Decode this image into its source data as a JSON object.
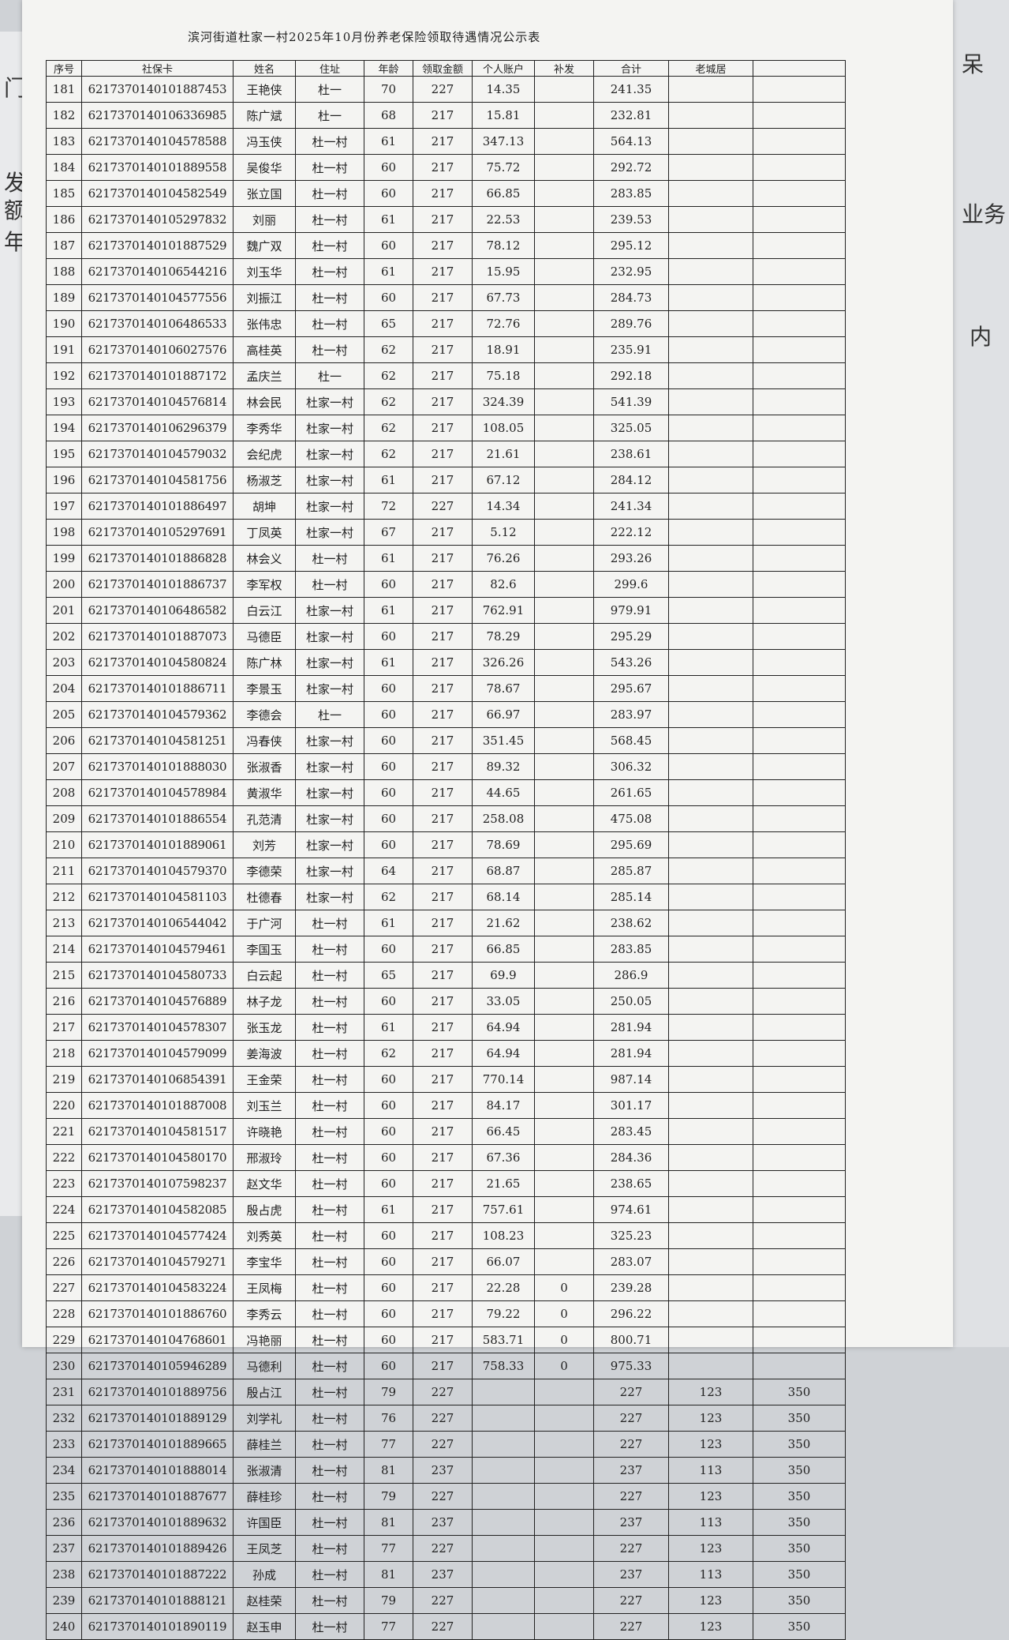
{
  "title": "滨河街道杜家一村2025年10月份养老保险领取待遇情况公示表",
  "side_fragments": {
    "left": [
      "门",
      "发",
      "额",
      "年"
    ],
    "right": [
      "呆",
      "业务",
      "内"
    ]
  },
  "columns": [
    "序号",
    "社保卡",
    "姓名",
    "住址",
    "年龄",
    "领取金额",
    "个人账户",
    "补发",
    "合计",
    "老城居",
    ""
  ],
  "rows": [
    [
      "181",
      "6217370140101887453",
      "王艳侠",
      "杜一",
      "70",
      "227",
      "14.35",
      "",
      "241.35",
      "",
      ""
    ],
    [
      "182",
      "6217370140106336985",
      "陈广斌",
      "杜一",
      "68",
      "217",
      "15.81",
      "",
      "232.81",
      "",
      ""
    ],
    [
      "183",
      "6217370140104578588",
      "冯玉侠",
      "杜一村",
      "61",
      "217",
      "347.13",
      "",
      "564.13",
      "",
      ""
    ],
    [
      "184",
      "6217370140101889558",
      "吴俊华",
      "杜一村",
      "60",
      "217",
      "75.72",
      "",
      "292.72",
      "",
      ""
    ],
    [
      "185",
      "6217370140104582549",
      "张立国",
      "杜一村",
      "60",
      "217",
      "66.85",
      "",
      "283.85",
      "",
      ""
    ],
    [
      "186",
      "6217370140105297832",
      "刘丽",
      "杜一村",
      "61",
      "217",
      "22.53",
      "",
      "239.53",
      "",
      ""
    ],
    [
      "187",
      "6217370140101887529",
      "魏广双",
      "杜一村",
      "60",
      "217",
      "78.12",
      "",
      "295.12",
      "",
      ""
    ],
    [
      "188",
      "6217370140106544216",
      "刘玉华",
      "杜一村",
      "61",
      "217",
      "15.95",
      "",
      "232.95",
      "",
      ""
    ],
    [
      "189",
      "6217370140104577556",
      "刘振江",
      "杜一村",
      "60",
      "217",
      "67.73",
      "",
      "284.73",
      "",
      ""
    ],
    [
      "190",
      "6217370140106486533",
      "张伟忠",
      "杜一村",
      "65",
      "217",
      "72.76",
      "",
      "289.76",
      "",
      ""
    ],
    [
      "191",
      "6217370140106027576",
      "高桂英",
      "杜一村",
      "62",
      "217",
      "18.91",
      "",
      "235.91",
      "",
      ""
    ],
    [
      "192",
      "6217370140101887172",
      "孟庆兰",
      "杜一",
      "62",
      "217",
      "75.18",
      "",
      "292.18",
      "",
      ""
    ],
    [
      "193",
      "6217370140104576814",
      "林会民",
      "杜家一村",
      "62",
      "217",
      "324.39",
      "",
      "541.39",
      "",
      ""
    ],
    [
      "194",
      "6217370140106296379",
      "李秀华",
      "杜家一村",
      "62",
      "217",
      "108.05",
      "",
      "325.05",
      "",
      ""
    ],
    [
      "195",
      "6217370140104579032",
      "会纪虎",
      "杜家一村",
      "62",
      "217",
      "21.61",
      "",
      "238.61",
      "",
      ""
    ],
    [
      "196",
      "6217370140104581756",
      "杨淑芝",
      "杜家一村",
      "61",
      "217",
      "67.12",
      "",
      "284.12",
      "",
      ""
    ],
    [
      "197",
      "6217370140101886497",
      "胡坤",
      "杜家一村",
      "72",
      "227",
      "14.34",
      "",
      "241.34",
      "",
      ""
    ],
    [
      "198",
      "6217370140105297691",
      "丁凤英",
      "杜家一村",
      "67",
      "217",
      "5.12",
      "",
      "222.12",
      "",
      ""
    ],
    [
      "199",
      "6217370140101886828",
      "林会义",
      "杜一村",
      "61",
      "217",
      "76.26",
      "",
      "293.26",
      "",
      ""
    ],
    [
      "200",
      "6217370140101886737",
      "李军权",
      "杜一村",
      "60",
      "217",
      "82.6",
      "",
      "299.6",
      "",
      ""
    ],
    [
      "201",
      "6217370140106486582",
      "白云江",
      "杜家一村",
      "61",
      "217",
      "762.91",
      "",
      "979.91",
      "",
      ""
    ],
    [
      "202",
      "6217370140101887073",
      "马德臣",
      "杜家一村",
      "60",
      "217",
      "78.29",
      "",
      "295.29",
      "",
      ""
    ],
    [
      "203",
      "6217370140104580824",
      "陈广林",
      "杜家一村",
      "61",
      "217",
      "326.26",
      "",
      "543.26",
      "",
      ""
    ],
    [
      "204",
      "6217370140101886711",
      "李景玉",
      "杜家一村",
      "60",
      "217",
      "78.67",
      "",
      "295.67",
      "",
      ""
    ],
    [
      "205",
      "6217370140104579362",
      "李德会",
      "杜一",
      "60",
      "217",
      "66.97",
      "",
      "283.97",
      "",
      ""
    ],
    [
      "206",
      "6217370140104581251",
      "冯春侠",
      "杜家一村",
      "60",
      "217",
      "351.45",
      "",
      "568.45",
      "",
      ""
    ],
    [
      "207",
      "6217370140101888030",
      "张淑香",
      "杜家一村",
      "60",
      "217",
      "89.32",
      "",
      "306.32",
      "",
      ""
    ],
    [
      "208",
      "6217370140104578984",
      "黄淑华",
      "杜家一村",
      "60",
      "217",
      "44.65",
      "",
      "261.65",
      "",
      ""
    ],
    [
      "209",
      "6217370140101886554",
      "孔范清",
      "杜家一村",
      "60",
      "217",
      "258.08",
      "",
      "475.08",
      "",
      ""
    ],
    [
      "210",
      "6217370140101889061",
      "刘芳",
      "杜家一村",
      "60",
      "217",
      "78.69",
      "",
      "295.69",
      "",
      ""
    ],
    [
      "211",
      "6217370140104579370",
      "李德荣",
      "杜家一村",
      "64",
      "217",
      "68.87",
      "",
      "285.87",
      "",
      ""
    ],
    [
      "212",
      "6217370140104581103",
      "杜德春",
      "杜家一村",
      "62",
      "217",
      "68.14",
      "",
      "285.14",
      "",
      ""
    ],
    [
      "213",
      "6217370140106544042",
      "于广河",
      "杜一村",
      "61",
      "217",
      "21.62",
      "",
      "238.62",
      "",
      ""
    ],
    [
      "214",
      "6217370140104579461",
      "李国玉",
      "杜一村",
      "60",
      "217",
      "66.85",
      "",
      "283.85",
      "",
      ""
    ],
    [
      "215",
      "6217370140104580733",
      "白云起",
      "杜一村",
      "65",
      "217",
      "69.9",
      "",
      "286.9",
      "",
      ""
    ],
    [
      "216",
      "6217370140104576889",
      "林子龙",
      "杜一村",
      "60",
      "217",
      "33.05",
      "",
      "250.05",
      "",
      ""
    ],
    [
      "217",
      "6217370140104578307",
      "张玉龙",
      "杜一村",
      "61",
      "217",
      "64.94",
      "",
      "281.94",
      "",
      ""
    ],
    [
      "218",
      "6217370140104579099",
      "姜海波",
      "杜一村",
      "62",
      "217",
      "64.94",
      "",
      "281.94",
      "",
      ""
    ],
    [
      "219",
      "6217370140106854391",
      "王金荣",
      "杜一村",
      "60",
      "217",
      "770.14",
      "",
      "987.14",
      "",
      ""
    ],
    [
      "220",
      "6217370140101887008",
      "刘玉兰",
      "杜一村",
      "60",
      "217",
      "84.17",
      "",
      "301.17",
      "",
      ""
    ],
    [
      "221",
      "6217370140104581517",
      "许晓艳",
      "杜一村",
      "60",
      "217",
      "66.45",
      "",
      "283.45",
      "",
      ""
    ],
    [
      "222",
      "6217370140104580170",
      "邢淑玲",
      "杜一村",
      "60",
      "217",
      "67.36",
      "",
      "284.36",
      "",
      ""
    ],
    [
      "223",
      "6217370140107598237",
      "赵文华",
      "杜一村",
      "60",
      "217",
      "21.65",
      "",
      "238.65",
      "",
      ""
    ],
    [
      "224",
      "6217370140104582085",
      "殷占虎",
      "杜一村",
      "61",
      "217",
      "757.61",
      "",
      "974.61",
      "",
      ""
    ],
    [
      "225",
      "6217370140104577424",
      "刘秀英",
      "杜一村",
      "60",
      "217",
      "108.23",
      "",
      "325.23",
      "",
      ""
    ],
    [
      "226",
      "6217370140104579271",
      "李宝华",
      "杜一村",
      "60",
      "217",
      "66.07",
      "",
      "283.07",
      "",
      ""
    ],
    [
      "227",
      "6217370140104583224",
      "王凤梅",
      "杜一村",
      "60",
      "217",
      "22.28",
      "0",
      "239.28",
      "",
      ""
    ],
    [
      "228",
      "6217370140101886760",
      "李秀云",
      "杜一村",
      "60",
      "217",
      "79.22",
      "0",
      "296.22",
      "",
      ""
    ],
    [
      "229",
      "6217370140104768601",
      "冯艳丽",
      "杜一村",
      "60",
      "217",
      "583.71",
      "0",
      "800.71",
      "",
      ""
    ],
    [
      "230",
      "6217370140105946289",
      "马德利",
      "杜一村",
      "60",
      "217",
      "758.33",
      "0",
      "975.33",
      "",
      ""
    ],
    [
      "231",
      "6217370140101889756",
      "殷占江",
      "杜一村",
      "79",
      "227",
      "",
      "",
      "227",
      "123",
      "350"
    ],
    [
      "232",
      "6217370140101889129",
      "刘学礼",
      "杜一村",
      "76",
      "227",
      "",
      "",
      "227",
      "123",
      "350"
    ],
    [
      "233",
      "6217370140101889665",
      "薛桂兰",
      "杜一村",
      "77",
      "227",
      "",
      "",
      "227",
      "123",
      "350"
    ],
    [
      "234",
      "6217370140101888014",
      "张淑清",
      "杜一村",
      "81",
      "237",
      "",
      "",
      "237",
      "113",
      "350"
    ],
    [
      "235",
      "6217370140101887677",
      "薛桂珍",
      "杜一村",
      "79",
      "227",
      "",
      "",
      "227",
      "123",
      "350"
    ],
    [
      "236",
      "6217370140101889632",
      "许国臣",
      "杜一村",
      "81",
      "237",
      "",
      "",
      "237",
      "113",
      "350"
    ],
    [
      "237",
      "6217370140101889426",
      "王凤芝",
      "杜一村",
      "77",
      "227",
      "",
      "",
      "227",
      "123",
      "350"
    ],
    [
      "238",
      "6217370140101887222",
      "孙成",
      "杜一村",
      "81",
      "237",
      "",
      "",
      "237",
      "113",
      "350"
    ],
    [
      "239",
      "6217370140101888121",
      "赵桂荣",
      "杜一村",
      "79",
      "227",
      "",
      "",
      "227",
      "123",
      "350"
    ],
    [
      "240",
      "6217370140101890119",
      "赵玉申",
      "杜一村",
      "77",
      "227",
      "",
      "",
      "227",
      "123",
      "350"
    ]
  ]
}
